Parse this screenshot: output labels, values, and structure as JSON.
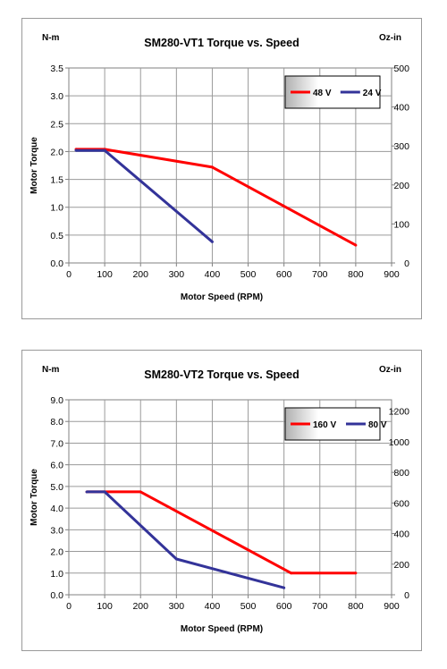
{
  "chart_data": [
    {
      "type": "line",
      "title": "SM280-VT1 Torque vs. Speed",
      "left_unit": "N-m",
      "right_unit": "Oz-in",
      "xlabel": "Motor Speed (RPM)",
      "ylabel": "Motor Torque",
      "xlim": [
        0,
        900
      ],
      "xticks": [
        "0",
        "100",
        "200",
        "300",
        "400",
        "500",
        "600",
        "700",
        "800",
        "900"
      ],
      "ylim": [
        0,
        3.5
      ],
      "yticks": [
        "0.0",
        "0.5",
        "1.0",
        "1.5",
        "2.0",
        "2.5",
        "3.0",
        "3.5"
      ],
      "y2lim": [
        0,
        500
      ],
      "y2ticks": [
        "0",
        "100",
        "200",
        "300",
        "400",
        "500"
      ],
      "grid": true,
      "legend_position": "top-right",
      "series": [
        {
          "name": "48 V",
          "color": "#ff0000",
          "x": [
            20,
            100,
            400,
            800
          ],
          "y": [
            2.04,
            2.04,
            1.72,
            0.32
          ]
        },
        {
          "name": "24 V",
          "color": "#333399",
          "x": [
            20,
            100,
            400
          ],
          "y": [
            2.02,
            2.02,
            0.38
          ]
        }
      ]
    },
    {
      "type": "line",
      "title": "SM280-VT2 Torque vs. Speed",
      "left_unit": "N-m",
      "right_unit": "Oz-in",
      "xlabel": "Motor Speed (RPM)",
      "ylabel": "Motor Torque",
      "xlim": [
        0,
        900
      ],
      "xticks": [
        "0",
        "100",
        "200",
        "300",
        "400",
        "500",
        "600",
        "700",
        "800",
        "900"
      ],
      "ylim": [
        0,
        9.0
      ],
      "yticks": [
        "0.0",
        "1.0",
        "2.0",
        "3.0",
        "4.0",
        "5.0",
        "6.0",
        "7.0",
        "8.0",
        "9.0"
      ],
      "y2lim": [
        0,
        1274.5
      ],
      "y2ticks": [
        "0",
        "200",
        "400",
        "600",
        "800",
        "1000",
        "1200"
      ],
      "grid": true,
      "legend_position": "top-right",
      "series": [
        {
          "name": "160 V",
          "color": "#ff0000",
          "x": [
            50,
            100,
            200,
            620,
            800
          ],
          "y": [
            4.75,
            4.75,
            4.75,
            1.0,
            1.0
          ]
        },
        {
          "name": "80 V",
          "color": "#333399",
          "x": [
            50,
            100,
            300,
            600
          ],
          "y": [
            4.75,
            4.75,
            1.65,
            0.32
          ]
        }
      ]
    }
  ]
}
